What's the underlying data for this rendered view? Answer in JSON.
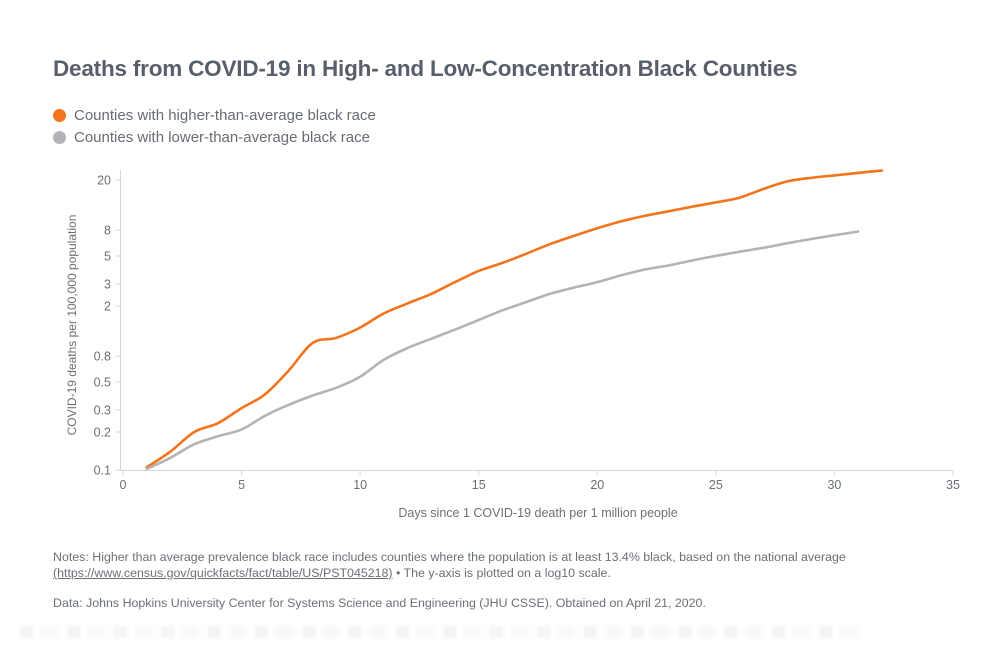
{
  "page": {
    "title": "Deaths from COVID-19 in High- and Low-Concentration Black Counties"
  },
  "colors": {
    "higher_series": "#f2741c",
    "lower_series": "#b3b3b8",
    "title_text": "#595f6a",
    "body_text": "#6b7077",
    "axis_line": "#d6d6db"
  },
  "legend": {
    "items": [
      {
        "label": "Counties with higher-than-average black race",
        "color": "#f2741c"
      },
      {
        "label": "Counties with lower-than-average black race",
        "color": "#b3b3b8"
      }
    ]
  },
  "notes": {
    "line1": "Notes: Higher than average prevalence black race includes counties where the population is at least 13.4% black, based on the national average",
    "link": "(https://www.census.gov/quickfacts/fact/table/US/PST045218)",
    "line2_suffix": " • The y-axis is plotted on a log10 scale.",
    "data_source": "Data: Johns Hopkins University Center for Systems Science and Engineering (JHU CSSE). Obtained on April 21, 2020."
  },
  "chart_data": {
    "type": "line",
    "title": "Deaths from COVID-19 in High- and Low-Concentration Black Counties",
    "xlabel": "Days since 1 COVID-19 death per 1 million people",
    "ylabel": "COVID-19 deaths per 100,000 population",
    "y_scale": "log10",
    "xlim": [
      0,
      35
    ],
    "ylim": [
      0.1,
      23
    ],
    "x_ticks": [
      0,
      5,
      10,
      15,
      20,
      25,
      30,
      35
    ],
    "y_ticks": [
      20,
      8,
      5,
      3,
      2,
      0.8,
      0.5,
      0.3,
      0.2,
      0.1
    ],
    "grid": false,
    "legend_position": "top-left",
    "series": [
      {
        "name": "Counties with higher-than-average black race",
        "color": "#f2741c",
        "x": [
          1,
          2,
          3,
          4,
          5,
          6,
          7,
          8,
          9,
          10,
          11,
          12,
          13,
          14,
          15,
          16,
          17,
          18,
          19,
          20,
          21,
          22,
          23,
          24,
          25,
          26,
          27,
          28,
          29,
          30,
          31,
          32
        ],
        "y": [
          0.105,
          0.14,
          0.2,
          0.235,
          0.31,
          0.4,
          0.62,
          1.02,
          1.12,
          1.35,
          1.75,
          2.1,
          2.5,
          3.1,
          3.8,
          4.4,
          5.2,
          6.2,
          7.2,
          8.3,
          9.4,
          10.4,
          11.3,
          12.3,
          13.3,
          14.5,
          17.0,
          19.5,
          20.8,
          21.8,
          22.8,
          23.8
        ]
      },
      {
        "name": "Counties with lower-than-average black race",
        "color": "#b3b3b8",
        "x": [
          1,
          2,
          3,
          4,
          5,
          6,
          7,
          8,
          9,
          10,
          11,
          12,
          13,
          14,
          15,
          16,
          17,
          18,
          19,
          20,
          21,
          22,
          23,
          24,
          25,
          26,
          27,
          28,
          29,
          30,
          31
        ],
        "y": [
          0.102,
          0.125,
          0.16,
          0.185,
          0.21,
          0.27,
          0.33,
          0.39,
          0.45,
          0.55,
          0.75,
          0.93,
          1.1,
          1.3,
          1.55,
          1.85,
          2.15,
          2.5,
          2.8,
          3.1,
          3.5,
          3.9,
          4.2,
          4.6,
          5.0,
          5.4,
          5.8,
          6.3,
          6.8,
          7.3,
          7.8
        ]
      }
    ]
  }
}
